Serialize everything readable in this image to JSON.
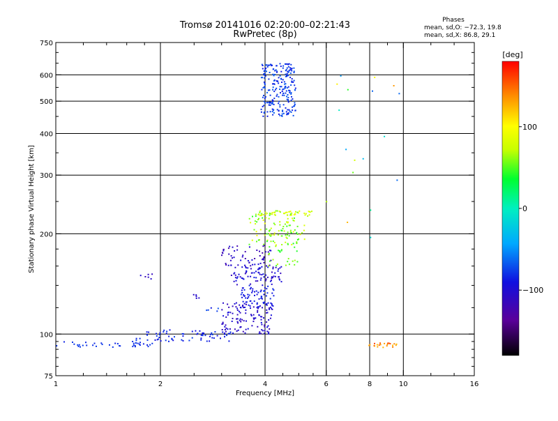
{
  "header": {
    "title_line1": "Tromsø 20141016 02:20:00–02:21:43",
    "title_line2": "RwPretec (8p)",
    "stats_title": "Phases",
    "stats_o": "mean, sd,O: −72.3, 19.8",
    "stats_x": "mean, sd,X:  86.8, 29.1"
  },
  "colorbar": {
    "unit": "[deg]",
    "range": [
      -180,
      180
    ],
    "ticks": [
      {
        "value": 100,
        "label": "100"
      },
      {
        "value": 0,
        "label": "0"
      },
      {
        "value": -100,
        "label": "−100"
      }
    ]
  },
  "chart_data": {
    "type": "scatter",
    "title": "Tromsø 20141016 02:20:00–02:21:43",
    "subtitle": "RwPretec (8p)",
    "xlabel": "Frequency [MHz]",
    "ylabel": "Stationary phase Virtual Height [km]",
    "xscale": "log",
    "yscale": "log",
    "xlim": [
      1,
      16
    ],
    "ylim": [
      75,
      750
    ],
    "grid": true,
    "x_ticks": [
      {
        "value": 1,
        "label": "1"
      },
      {
        "value": 2,
        "label": "2"
      },
      {
        "value": 4,
        "label": "4"
      },
      {
        "value": 6,
        "label": "6"
      },
      {
        "value": 8,
        "label": "8"
      },
      {
        "value": 10,
        "label": "10"
      },
      {
        "value": 16,
        "label": "16"
      }
    ],
    "y_ticks": [
      {
        "value": 75,
        "label": "75"
      },
      {
        "value": 100,
        "label": "100"
      },
      {
        "value": 200,
        "label": "200"
      },
      {
        "value": 300,
        "label": "300"
      },
      {
        "value": 400,
        "label": "400"
      },
      {
        "value": 500,
        "label": "500"
      },
      {
        "value": 600,
        "label": "600"
      },
      {
        "value": 750,
        "label": "750"
      }
    ],
    "x_minor_ticks": [
      1.2,
      1.4,
      1.6,
      1.8,
      2.5,
      3,
      3.5,
      4.5,
      5,
      5.5,
      7,
      9,
      12,
      14
    ],
    "y_minor_ticks": [
      80,
      85,
      90,
      95,
      120,
      140,
      160,
      180,
      250,
      350,
      450,
      550,
      650,
      700
    ],
    "grid_x": [
      2,
      4,
      6,
      8,
      10
    ],
    "grid_y": [
      100,
      200,
      300,
      400,
      500,
      600
    ],
    "color_by": "phase_deg",
    "clusters": [
      {
        "name": "e-layer-trace",
        "x_range": [
          1.0,
          1.9
        ],
        "y_range": [
          91,
          95
        ],
        "phase": [
          -85,
          -75
        ],
        "count": 40
      },
      {
        "name": "e-layer-rise",
        "x_range": [
          1.7,
          3.2
        ],
        "y_range": [
          95,
          103
        ],
        "phase": [
          -95,
          -75
        ],
        "count": 70
      },
      {
        "name": "f-lower",
        "x_range": [
          3.0,
          4.2
        ],
        "y_range": [
          100,
          125
        ],
        "phase": [
          -120,
          -90
        ],
        "count": 120
      },
      {
        "name": "f-trace-1",
        "x_range": [
          3.4,
          4.3
        ],
        "y_range": [
          120,
          140
        ],
        "phase": [
          -95,
          -80
        ],
        "count": 70
      },
      {
        "name": "f-trace-2",
        "x_range": [
          3.2,
          4.5
        ],
        "y_range": [
          140,
          160
        ],
        "phase": [
          -115,
          -85
        ],
        "count": 80
      },
      {
        "name": "f-trace-3",
        "x_range": [
          3.0,
          4.2
        ],
        "y_range": [
          160,
          185
        ],
        "phase": [
          -125,
          -95
        ],
        "count": 60
      },
      {
        "name": "f-upper",
        "x_range": [
          3.6,
          5.2
        ],
        "y_range": [
          185,
          235
        ],
        "phase": [
          40,
          95
        ],
        "count": 90
      },
      {
        "name": "f-green",
        "x_range": [
          4.0,
          5.0
        ],
        "y_range": [
          160,
          215
        ],
        "phase": [
          40,
          70
        ],
        "count": 50
      },
      {
        "name": "f-top-line",
        "x_range": [
          3.8,
          5.6
        ],
        "y_range": [
          226,
          234
        ],
        "phase": [
          65,
          95
        ],
        "count": 40
      },
      {
        "name": "spread-f",
        "x_range": [
          3.9,
          4.9
        ],
        "y_range": [
          450,
          650
        ],
        "phase": [
          -90,
          -65
        ],
        "count": 230
      },
      {
        "name": "x-trace-high",
        "x_range": [
          7.8,
          9.6
        ],
        "y_range": [
          91,
          94
        ],
        "phase": [
          120,
          160
        ],
        "count": 22
      },
      {
        "name": "g-flat",
        "x_range": [
          1.75,
          1.9
        ],
        "y_range": [
          145,
          152
        ],
        "phase": [
          -120,
          -100
        ],
        "count": 6
      },
      {
        "name": "g-1",
        "x_range": [
          2.4,
          2.6
        ],
        "y_range": [
          128,
          132
        ],
        "phase": [
          -110,
          -100
        ],
        "count": 5
      },
      {
        "name": "g-2",
        "x_range": [
          2.7,
          3.0
        ],
        "y_range": [
          117,
          120
        ],
        "phase": [
          -90,
          -70
        ],
        "count": 5
      },
      {
        "name": "isolated-high",
        "x_range": [
          6.0,
          10.0
        ],
        "y_range": [
          190,
          620
        ],
        "phase": [
          -70,
          140
        ],
        "count": 18
      }
    ]
  }
}
